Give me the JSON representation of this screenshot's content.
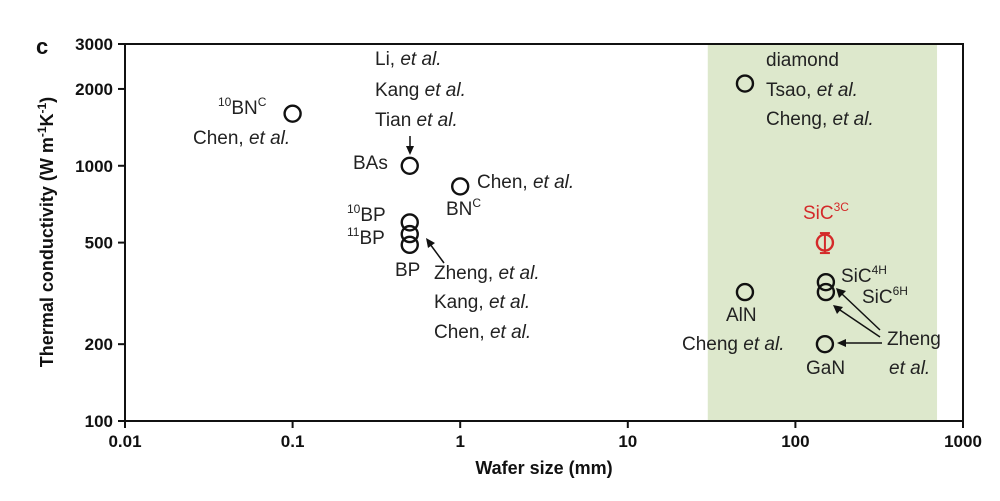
{
  "panel_label": "c",
  "chart_data": {
    "type": "scatter",
    "xlabel": "Wafer size (mm)",
    "ylabel_main": "Thermal conductivity (W m",
    "ylabel_sup1": "-1",
    "ylabel_mid": "K",
    "ylabel_sup2": "-1",
    "ylabel_end": ")",
    "x_scale": "log",
    "y_scale": "log",
    "xlim": [
      0.01,
      1000
    ],
    "ylim": [
      100,
      3000
    ],
    "x_ticks": [
      "0.01",
      "0.1",
      "1",
      "10",
      "100",
      "1000"
    ],
    "y_ticks": [
      "100",
      "200",
      "500",
      "1000",
      "2000",
      "3000"
    ],
    "highlight_region": {
      "x_range": [
        30,
        700
      ],
      "color": "#dde8cc"
    },
    "points": [
      {
        "x": 0.1,
        "y": 1600,
        "color": "#111111"
      },
      {
        "x": 0.5,
        "y": 1000,
        "color": "#111111"
      },
      {
        "x": 1.0,
        "y": 830,
        "color": "#111111"
      },
      {
        "x": 0.5,
        "y": 600,
        "color": "#111111"
      },
      {
        "x": 0.5,
        "y": 540,
        "color": "#111111"
      },
      {
        "x": 0.5,
        "y": 490,
        "color": "#111111"
      },
      {
        "x": 50,
        "y": 2100,
        "color": "#111111"
      },
      {
        "x": 150,
        "y": 500,
        "color": "#d42a2a",
        "error": [
          455,
          545
        ]
      },
      {
        "x": 50,
        "y": 320,
        "color": "#111111"
      },
      {
        "x": 152,
        "y": 350,
        "color": "#111111"
      },
      {
        "x": 152,
        "y": 320,
        "color": "#111111"
      },
      {
        "x": 150,
        "y": 200,
        "color": "#111111"
      }
    ],
    "annotations": {
      "bn10c": {
        "sup": "10",
        "base": "BN",
        "sup2": "C"
      },
      "chen1": {
        "prefix": "Chen, ",
        "ital": "et al."
      },
      "li": {
        "prefix": "Li, ",
        "ital": "et al."
      },
      "kang1": {
        "prefix": "Kang ",
        "ital": "et al."
      },
      "tian": {
        "prefix": "Tian ",
        "ital": "et al."
      },
      "bas": "BAs",
      "chen2": {
        "prefix": "Chen, ",
        "ital": "et al."
      },
      "bnc": {
        "base": "BN",
        "sup": "C"
      },
      "bp10": {
        "sup": "10",
        "base": "BP"
      },
      "bp11": {
        "sup": "11",
        "base": "BP"
      },
      "bp": "BP",
      "zheng1": {
        "prefix": "Zheng, ",
        "ital": "et al."
      },
      "kang2": {
        "prefix": "Kang, ",
        "ital": "et al."
      },
      "chen3": {
        "prefix": "Chen, ",
        "ital": "et al."
      },
      "diamond": "diamond",
      "tsao": {
        "prefix": "Tsao, ",
        "ital": "et al."
      },
      "cheng1": {
        "prefix": "Cheng, ",
        "ital": "et al."
      },
      "sic3c": {
        "base": "SiC",
        "sup": "3C"
      },
      "sic4h": {
        "base": "SiC",
        "sup": "4H"
      },
      "sic6h": {
        "base": "SiC",
        "sup": "6H"
      },
      "aln": "AlN",
      "cheng2": {
        "prefix": "Cheng ",
        "ital": "et al."
      },
      "gan": "GaN",
      "zheng2a": "Zheng",
      "zheng2b": "et al."
    }
  }
}
